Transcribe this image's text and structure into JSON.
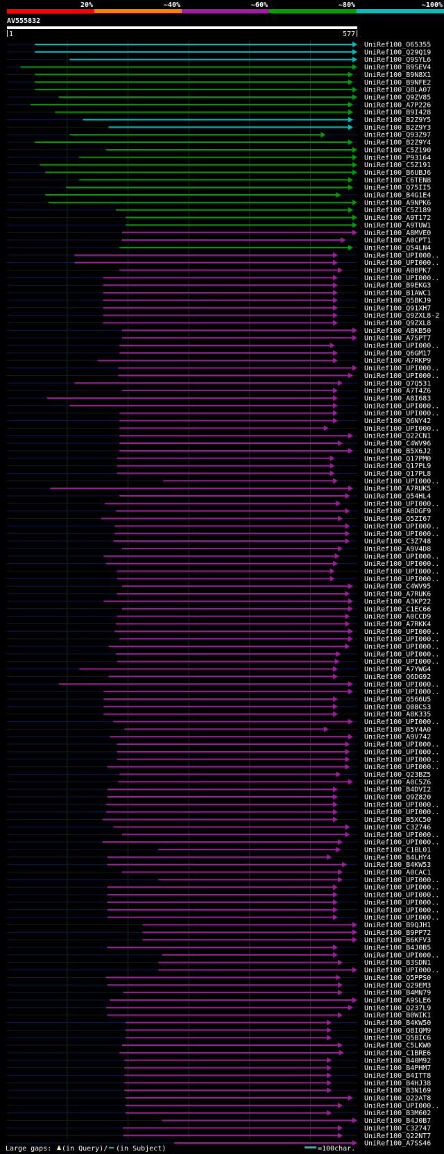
{
  "chart_data": {
    "type": "alignment-overview",
    "query_name": "AV555832",
    "query_start": "1",
    "query_end": "577",
    "query_length": 577,
    "identity_legend": [
      {
        "label": "20%",
        "color": "#ff0000"
      },
      {
        "label": "~40%",
        "color": "#ff8000"
      },
      {
        "label": "~60%",
        "color": "#a01ca0"
      },
      {
        "label": "~80%",
        "color": "#00a000"
      },
      {
        "label": "~100%",
        "color": "#00c0c0"
      }
    ],
    "footer": {
      "gaps_prefix": "Large gaps: ",
      "gaps_query": "(in Query)/",
      "gaps_subject": "(in Subject)",
      "scale_label": "=100char."
    },
    "colors": {
      "cyan": "#00c0c0",
      "green": "#00a000",
      "magenta": "#a01ca0",
      "gap_mark": "#ffff80",
      "gridline": "#1a2a1a"
    },
    "hits": [
      {
        "name": "UniRef100_O65355",
        "start": 47,
        "end": 577,
        "color": "cyan"
      },
      {
        "name": "UniRef100_Q29Q19",
        "start": 47,
        "end": 577,
        "color": "cyan"
      },
      {
        "name": "UniRef100_Q9SYL6",
        "start": 104,
        "end": 577,
        "color": "cyan"
      },
      {
        "name": "UniRef100_B9SEV4",
        "start": 23,
        "end": 577,
        "color": "green"
      },
      {
        "name": "UniRef100_B9N8X1",
        "start": 47,
        "end": 570,
        "color": "green"
      },
      {
        "name": "UniRef100_B9NFE2",
        "start": 47,
        "end": 570,
        "color": "green"
      },
      {
        "name": "UniRef100_Q8LA07",
        "start": 47,
        "end": 577,
        "color": "green"
      },
      {
        "name": "UniRef100_Q9ZV85",
        "start": 86,
        "end": 577,
        "color": "green"
      },
      {
        "name": "UniRef100_A7P226",
        "start": 40,
        "end": 570,
        "color": "green"
      },
      {
        "name": "UniRef100_B9I428",
        "start": 80,
        "end": 570,
        "color": "green"
      },
      {
        "name": "UniRef100_B2Z9Y5",
        "start": 126,
        "end": 570,
        "color": "cyan"
      },
      {
        "name": "UniRef100_B2Z9Y3",
        "start": 168,
        "end": 570,
        "color": "cyan"
      },
      {
        "name": "UniRef100_Q93Z97",
        "start": 104,
        "end": 525,
        "color": "green"
      },
      {
        "name": "UniRef100_B2Z9Y4",
        "start": 47,
        "end": 570,
        "color": "green"
      },
      {
        "name": "UniRef100_C5Z190",
        "start": 164,
        "end": 577,
        "color": "green"
      },
      {
        "name": "UniRef100_P93164",
        "start": 120,
        "end": 577,
        "color": "green"
      },
      {
        "name": "UniRef100_C5Z191",
        "start": 55,
        "end": 577,
        "color": "green"
      },
      {
        "name": "UniRef100_B6UBJ6",
        "start": 64,
        "end": 577,
        "color": "green"
      },
      {
        "name": "UniRef100_C6TEN8",
        "start": 120,
        "end": 570,
        "color": "green"
      },
      {
        "name": "UniRef100_Q75II5",
        "start": 98,
        "end": 570,
        "color": "green"
      },
      {
        "name": "UniRef100_B4G1E4",
        "start": 64,
        "end": 550,
        "color": "green"
      },
      {
        "name": "UniRef100_A9NPK6",
        "start": 69,
        "end": 577,
        "color": "green"
      },
      {
        "name": "UniRef100_C5Z189",
        "start": 180,
        "end": 570,
        "color": "green"
      },
      {
        "name": "UniRef100_A9T172",
        "start": 196,
        "end": 577,
        "color": "green"
      },
      {
        "name": "UniRef100_A9TUW1",
        "start": 196,
        "end": 577,
        "color": "green"
      },
      {
        "name": "UniRef100_A8MVE0",
        "start": 190,
        "end": 577,
        "color": "magenta"
      },
      {
        "name": "UniRef100_A0CPT1",
        "start": 190,
        "end": 558,
        "color": "magenta"
      },
      {
        "name": "UniRef100_Q54LN4",
        "start": 186,
        "end": 570,
        "color": "green"
      },
      {
        "name": "UniRef100_UPI000..",
        "start": 112,
        "end": 545,
        "color": "magenta"
      },
      {
        "name": "UniRef100_UPI000..",
        "start": 112,
        "end": 545,
        "color": "magenta"
      },
      {
        "name": "UniRef100_A0BPK7",
        "start": 186,
        "end": 553,
        "color": "magenta"
      },
      {
        "name": "UniRef100_UPI000..",
        "start": 159,
        "end": 545,
        "color": "magenta"
      },
      {
        "name": "UniRef100_B9EKG3",
        "start": 159,
        "end": 545,
        "color": "magenta"
      },
      {
        "name": "UniRef100_B1AWC1",
        "start": 159,
        "end": 545,
        "color": "magenta"
      },
      {
        "name": "UniRef100_Q5BKJ9",
        "start": 159,
        "end": 545,
        "color": "magenta"
      },
      {
        "name": "UniRef100_Q91XH7",
        "start": 159,
        "end": 545,
        "color": "magenta"
      },
      {
        "name": "UniRef100_Q9ZXL8-2",
        "start": 159,
        "end": 545,
        "color": "magenta"
      },
      {
        "name": "UniRef100_Q9ZXL8",
        "start": 159,
        "end": 545,
        "color": "magenta"
      },
      {
        "name": "UniRef100_A8KB50",
        "start": 190,
        "end": 577,
        "color": "magenta"
      },
      {
        "name": "UniRef100_A7SPT7",
        "start": 190,
        "end": 577,
        "color": "magenta"
      },
      {
        "name": "UniRef100_UPI000..",
        "start": 186,
        "end": 540,
        "color": "magenta"
      },
      {
        "name": "UniRef100_Q6GM17",
        "start": 186,
        "end": 545,
        "color": "magenta"
      },
      {
        "name": "UniRef100_A7RKP9",
        "start": 150,
        "end": 545,
        "color": "magenta"
      },
      {
        "name": "UniRef100_UPI000..",
        "start": 184,
        "end": 577,
        "color": "magenta"
      },
      {
        "name": "UniRef100_UPI000..",
        "start": 184,
        "end": 570,
        "color": "magenta"
      },
      {
        "name": "UniRef100_Q7Q531",
        "start": 112,
        "end": 553,
        "color": "magenta"
      },
      {
        "name": "UniRef100_A7T4Z6",
        "start": 190,
        "end": 545,
        "color": "magenta"
      },
      {
        "name": "UniRef100_A8I683",
        "start": 67,
        "end": 545,
        "color": "magenta"
      },
      {
        "name": "UniRef100_UPI000..",
        "start": 104,
        "end": 545,
        "color": "magenta"
      },
      {
        "name": "UniRef100_UPI000..",
        "start": 186,
        "end": 545,
        "color": "magenta"
      },
      {
        "name": "UniRef100_Q6NY42",
        "start": 186,
        "end": 545,
        "color": "magenta"
      },
      {
        "name": "UniRef100_UPI000..",
        "start": 186,
        "end": 530,
        "color": "magenta"
      },
      {
        "name": "UniRef100_Q22CN1",
        "start": 186,
        "end": 570,
        "color": "magenta"
      },
      {
        "name": "UniRef100_C4WV96",
        "start": 186,
        "end": 553,
        "color": "magenta"
      },
      {
        "name": "UniRef100_B5X6J2",
        "start": 186,
        "end": 570,
        "color": "magenta"
      },
      {
        "name": "UniRef100_Q17PM0",
        "start": 182,
        "end": 540,
        "color": "magenta"
      },
      {
        "name": "UniRef100_Q17PL9",
        "start": 182,
        "end": 540,
        "color": "magenta"
      },
      {
        "name": "UniRef100_Q17PL8",
        "start": 182,
        "end": 540,
        "color": "magenta"
      },
      {
        "name": "UniRef100_UPI000..",
        "start": 258,
        "end": 545,
        "color": "magenta"
      },
      {
        "name": "UniRef100_A7RUK5",
        "start": 72,
        "end": 570,
        "color": "magenta"
      },
      {
        "name": "UniRef100_Q54HL4",
        "start": 186,
        "end": 565,
        "color": "magenta"
      },
      {
        "name": "UniRef100_UPI000..",
        "start": 162,
        "end": 550,
        "color": "magenta"
      },
      {
        "name": "UniRef100_A0DGF9",
        "start": 180,
        "end": 565,
        "color": "magenta"
      },
      {
        "name": "UniRef100_Q5ZI67",
        "start": 156,
        "end": 553,
        "color": "magenta"
      },
      {
        "name": "UniRef100_UPI000..",
        "start": 178,
        "end": 565,
        "color": "magenta"
      },
      {
        "name": "UniRef100_UPI000..",
        "start": 178,
        "end": 565,
        "color": "magenta"
      },
      {
        "name": "UniRef100_C3Z748",
        "start": 176,
        "end": 565,
        "color": "magenta"
      },
      {
        "name": "UniRef100_A9V4D8",
        "start": 190,
        "end": 553,
        "color": "magenta"
      },
      {
        "name": "UniRef100_UPI000..",
        "start": 160,
        "end": 548,
        "color": "magenta"
      },
      {
        "name": "UniRef100_UPI000..",
        "start": 164,
        "end": 545,
        "color": "magenta"
      },
      {
        "name": "UniRef100_UPI000..",
        "start": 182,
        "end": 540,
        "color": "magenta"
      },
      {
        "name": "UniRef100_UPI000..",
        "start": 182,
        "end": 540,
        "color": "magenta"
      },
      {
        "name": "UniRef100_C4WV95",
        "start": 190,
        "end": 570,
        "color": "magenta"
      },
      {
        "name": "UniRef100_A7RUK6",
        "start": 182,
        "end": 565,
        "color": "magenta"
      },
      {
        "name": "UniRef100_A3KP22",
        "start": 160,
        "end": 570,
        "color": "magenta"
      },
      {
        "name": "UniRef100_C1EC66",
        "start": 190,
        "end": 570,
        "color": "magenta"
      },
      {
        "name": "UniRef100_A0CCD9",
        "start": 182,
        "end": 565,
        "color": "magenta"
      },
      {
        "name": "UniRef100_A7RKK4",
        "start": 180,
        "end": 565,
        "color": "magenta"
      },
      {
        "name": "UniRef100_UPI000..",
        "start": 178,
        "end": 570,
        "color": "magenta"
      },
      {
        "name": "UniRef100_UPI000..",
        "start": 186,
        "end": 570,
        "color": "magenta"
      },
      {
        "name": "UniRef100_UPI000..",
        "start": 168,
        "end": 565,
        "color": "magenta"
      },
      {
        "name": "UniRef100_UPI000..",
        "start": 180,
        "end": 550,
        "color": "magenta"
      },
      {
        "name": "UniRef100_UPI000..",
        "start": 182,
        "end": 548,
        "color": "magenta"
      },
      {
        "name": "UniRef100_A7YWG4",
        "start": 120,
        "end": 545,
        "color": "magenta"
      },
      {
        "name": "UniRef100_Q6DG92",
        "start": 168,
        "end": 545,
        "color": "magenta"
      },
      {
        "name": "UniRef100_UPI000..",
        "start": 86,
        "end": 570,
        "color": "magenta"
      },
      {
        "name": "UniRef100_UPI000..",
        "start": 160,
        "end": 570,
        "color": "magenta"
      },
      {
        "name": "UniRef100_Q566U5",
        "start": 160,
        "end": 545,
        "color": "magenta"
      },
      {
        "name": "UniRef100_Q08CS3",
        "start": 160,
        "end": 545,
        "color": "magenta"
      },
      {
        "name": "UniRef100_A8K335",
        "start": 160,
        "end": 545,
        "color": "magenta"
      },
      {
        "name": "UniRef100_UPI000..",
        "start": 176,
        "end": 570,
        "color": "magenta"
      },
      {
        "name": "UniRef100_B5Y4A0",
        "start": 194,
        "end": 530,
        "color": "magenta"
      },
      {
        "name": "UniRef100_A9V742",
        "start": 170,
        "end": 570,
        "color": "magenta"
      },
      {
        "name": "UniRef100_UPI000..",
        "start": 182,
        "end": 565,
        "color": "magenta"
      },
      {
        "name": "UniRef100_UPI000..",
        "start": 182,
        "end": 565,
        "color": "magenta"
      },
      {
        "name": "UniRef100_UPI000..",
        "start": 182,
        "end": 565,
        "color": "magenta"
      },
      {
        "name": "UniRef100_UPI000..",
        "start": 166,
        "end": 565,
        "color": "magenta"
      },
      {
        "name": "UniRef100_Q23BZ5",
        "start": 186,
        "end": 550,
        "color": "magenta"
      },
      {
        "name": "UniRef100_A0C5Z6",
        "start": 184,
        "end": 570,
        "color": "magenta"
      },
      {
        "name": "UniRef100_B4DVI2",
        "start": 166,
        "end": 545,
        "color": "magenta"
      },
      {
        "name": "UniRef100_Q9Z820",
        "start": 166,
        "end": 545,
        "color": "magenta"
      },
      {
        "name": "UniRef100_UPI000..",
        "start": 164,
        "end": 545,
        "color": "magenta"
      },
      {
        "name": "UniRef100_UPI000..",
        "start": 164,
        "end": 545,
        "color": "magenta"
      },
      {
        "name": "UniRef100_B5XC50",
        "start": 158,
        "end": 545,
        "color": "magenta"
      },
      {
        "name": "UniRef100_C3Z746",
        "start": 176,
        "end": 565,
        "color": "magenta"
      },
      {
        "name": "UniRef100_UPI000..",
        "start": 190,
        "end": 565,
        "color": "magenta"
      },
      {
        "name": "UniRef100_UPI000..",
        "start": 158,
        "end": 553,
        "color": "magenta"
      },
      {
        "name": "UniRef100_C1BL01",
        "start": 250,
        "end": 550,
        "color": "magenta"
      },
      {
        "name": "UniRef100_B4LHY4",
        "start": 166,
        "end": 535,
        "color": "magenta"
      },
      {
        "name": "UniRef100_B4KW53",
        "start": 166,
        "end": 560,
        "color": "magenta"
      },
      {
        "name": "UniRef100_A0CAC1",
        "start": 190,
        "end": 553,
        "color": "magenta"
      },
      {
        "name": "UniRef100_UPI000..",
        "start": 250,
        "end": 553,
        "color": "magenta"
      },
      {
        "name": "UniRef100_UPI000..",
        "start": 166,
        "end": 545,
        "color": "magenta"
      },
      {
        "name": "UniRef100_UPI000..",
        "start": 166,
        "end": 545,
        "color": "magenta"
      },
      {
        "name": "UniRef100_UPI000..",
        "start": 166,
        "end": 545,
        "color": "magenta"
      },
      {
        "name": "UniRef100_UPI000..",
        "start": 166,
        "end": 545,
        "color": "magenta"
      },
      {
        "name": "UniRef100_UPI000..",
        "start": 166,
        "end": 545,
        "color": "magenta"
      },
      {
        "name": "UniRef100_B9QJH1",
        "start": 224,
        "end": 577,
        "color": "magenta"
      },
      {
        "name": "UniRef100_B9PP72",
        "start": 224,
        "end": 577,
        "color": "magenta"
      },
      {
        "name": "UniRef100_B6KFV3",
        "start": 224,
        "end": 577,
        "color": "magenta"
      },
      {
        "name": "UniRef100_B4J0B5",
        "start": 166,
        "end": 545,
        "color": "magenta"
      },
      {
        "name": "UniRef100_UPI000..",
        "start": 256,
        "end": 545,
        "color": "magenta"
      },
      {
        "name": "UniRef100_B3SDN1",
        "start": 250,
        "end": 553,
        "color": "magenta"
      },
      {
        "name": "UniRef100_UPI000..",
        "start": 250,
        "end": 577,
        "color": "magenta"
      },
      {
        "name": "UniRef100_Q5PPS0",
        "start": 164,
        "end": 550,
        "color": "magenta"
      },
      {
        "name": "UniRef100_Q29EM3",
        "start": 166,
        "end": 553,
        "color": "magenta"
      },
      {
        "name": "UniRef100_B4MN79",
        "start": 192,
        "end": 553,
        "color": "magenta"
      },
      {
        "name": "UniRef100_A9SLE6",
        "start": 170,
        "end": 577,
        "color": "magenta"
      },
      {
        "name": "UniRef100_Q237L9",
        "start": 164,
        "end": 570,
        "color": "magenta"
      },
      {
        "name": "UniRef100_B0WIK1",
        "start": 166,
        "end": 553,
        "color": "magenta"
      },
      {
        "name": "UniRef100_B4KW50",
        "start": 196,
        "end": 535,
        "color": "magenta"
      },
      {
        "name": "UniRef100_Q8IQM9",
        "start": 196,
        "end": 535,
        "color": "magenta"
      },
      {
        "name": "UniRef100_Q5BIC6",
        "start": 196,
        "end": 535,
        "color": "magenta"
      },
      {
        "name": "UniRef100_C5LKW0",
        "start": 190,
        "end": 553,
        "color": "magenta"
      },
      {
        "name": "UniRef100_C1BRE6",
        "start": 186,
        "end": 555,
        "color": "magenta"
      },
      {
        "name": "UniRef100_B40M92",
        "start": 194,
        "end": 535,
        "color": "magenta"
      },
      {
        "name": "UniRef100_B4PHM7",
        "start": 194,
        "end": 535,
        "color": "magenta"
      },
      {
        "name": "UniRef100_B4ITT8",
        "start": 194,
        "end": 535,
        "color": "magenta"
      },
      {
        "name": "UniRef100_B4HJ38",
        "start": 194,
        "end": 535,
        "color": "magenta"
      },
      {
        "name": "UniRef100_B3N169",
        "start": 194,
        "end": 535,
        "color": "magenta"
      },
      {
        "name": "UniRef100_Q22AT8",
        "start": 196,
        "end": 570,
        "color": "magenta"
      },
      {
        "name": "UniRef100_UPI000..",
        "start": 196,
        "end": 553,
        "color": "magenta"
      },
      {
        "name": "UniRef100_B3M602",
        "start": 196,
        "end": 535,
        "color": "magenta"
      },
      {
        "name": "UniRef100_B4J0B7",
        "start": 256,
        "end": 577,
        "color": "magenta"
      },
      {
        "name": "UniRef100_C3Z747",
        "start": 192,
        "end": 553,
        "color": "magenta"
      },
      {
        "name": "UniRef100_Q22NT7",
        "start": 192,
        "end": 553,
        "color": "magenta"
      },
      {
        "name": "UniRef100_A7SS46",
        "start": 276,
        "end": 577,
        "color": "magenta"
      }
    ]
  }
}
